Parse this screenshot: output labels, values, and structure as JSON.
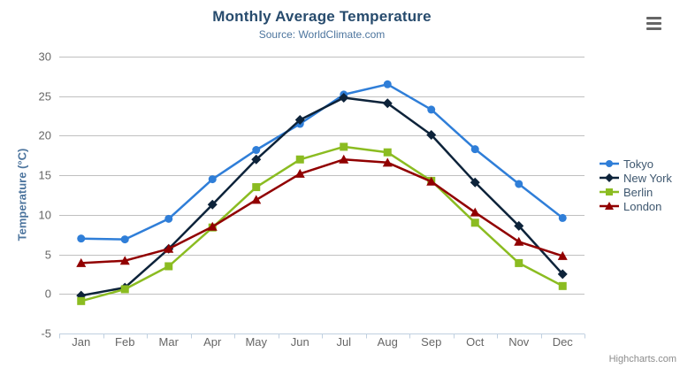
{
  "header": {
    "title": "Monthly Average Temperature",
    "subtitle": "Source: WorldClimate.com"
  },
  "credits": "Highcharts.com",
  "menu_icon": "hamburger-context-menu",
  "colors": {
    "title": "#274b6d",
    "subtitle": "#4d759e",
    "axis_title": "#4d759e",
    "tick_label": "#666666",
    "grid_line": "#c0c0c0",
    "axis_line": "#c0d0e0",
    "legend_text": "#3e576f",
    "credits_text": "#8c8c8c"
  },
  "chart_data": {
    "type": "line",
    "title": "Monthly Average Temperature",
    "subtitle": "Source: WorldClimate.com",
    "categories": [
      "Jan",
      "Feb",
      "Mar",
      "Apr",
      "May",
      "Jun",
      "Jul",
      "Aug",
      "Sep",
      "Oct",
      "Nov",
      "Dec"
    ],
    "series": [
      {
        "name": "Tokyo",
        "color": "#2f7ed8",
        "marker": "circle",
        "values": [
          7.0,
          6.9,
          9.5,
          14.5,
          18.2,
          21.5,
          25.2,
          26.5,
          23.3,
          18.3,
          13.9,
          9.6
        ]
      },
      {
        "name": "New York",
        "color": "#0d233a",
        "marker": "diamond",
        "values": [
          -0.2,
          0.8,
          5.7,
          11.3,
          17.0,
          22.0,
          24.8,
          24.1,
          20.1,
          14.1,
          8.6,
          2.5
        ]
      },
      {
        "name": "Berlin",
        "color": "#8bbc21",
        "marker": "square",
        "values": [
          -0.9,
          0.6,
          3.5,
          8.4,
          13.5,
          17.0,
          18.6,
          17.9,
          14.3,
          9.0,
          3.9,
          1.0
        ]
      },
      {
        "name": "London",
        "color": "#910000",
        "marker": "triangle",
        "values": [
          3.9,
          4.2,
          5.7,
          8.5,
          11.9,
          15.2,
          17.0,
          16.6,
          14.2,
          10.3,
          6.6,
          4.8
        ]
      }
    ],
    "xlabel": "",
    "ylabel": "Temperature (°C)",
    "ylim": [
      -5,
      30
    ],
    "ytick_step": 5,
    "grid": true,
    "legend_position": "right"
  }
}
